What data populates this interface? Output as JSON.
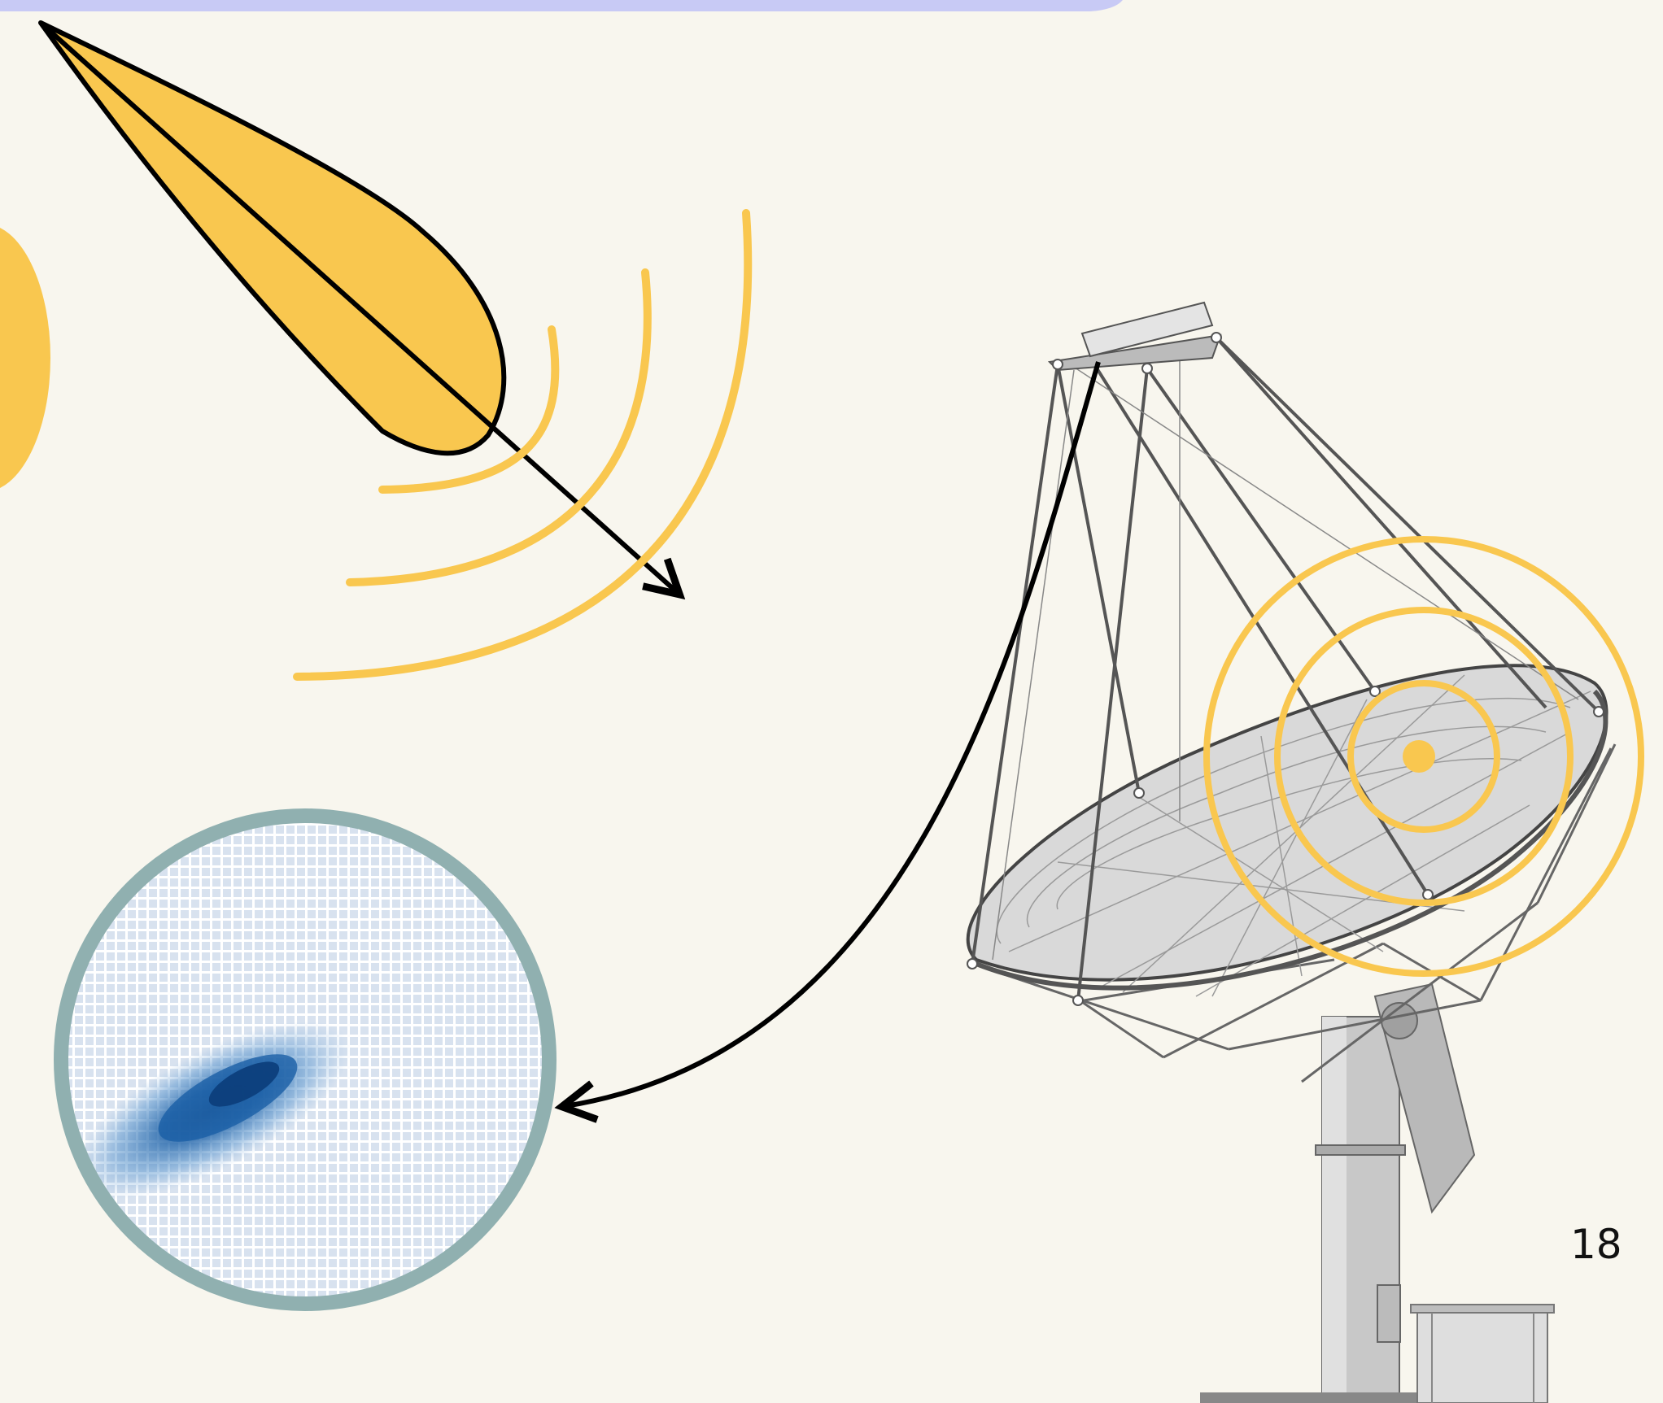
{
  "slide": {
    "page_number": "18"
  },
  "colors": {
    "background": "#f8f6ee",
    "accent_yellow": "#f9c74f",
    "header_bar": "#c8caf5",
    "frame_teal": "#90b0b0",
    "image_blue": "#1a5fa6",
    "outline": "#000000"
  },
  "icons": {
    "emission": "beam-lobe-icon",
    "waves": "wavefront-arcs-icon",
    "telescope": "radio-telescope-icon",
    "sky_image": "sky-image-icon"
  }
}
